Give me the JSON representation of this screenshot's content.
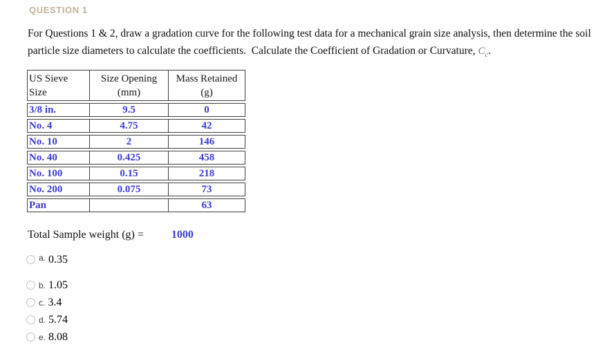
{
  "question_header": {
    "title": "QUESTION 1"
  },
  "paragraph": {
    "line1": "For Questions 1 & 2, draw a gradation curve for the following test data for a mechanical grain size analysis, then determine the soil",
    "line2": "particle size diameters to calculate the coefficients.  Calculate the Coefficient of Gradation or Curvature, ",
    "coefficient_symbol": "C",
    "coefficient_subscript": "c",
    "line2_end": "."
  },
  "sieve_table": {
    "headers": [
      {
        "line1": "US Sieve",
        "line2": "Size"
      },
      {
        "line1": "Size Opening",
        "line2": "(mm)"
      },
      {
        "line1": "Mass Retained",
        "line2": "(g)"
      }
    ],
    "rows": [
      {
        "sieve": "3/8 in.",
        "opening": "9.5",
        "mass": "0"
      },
      {
        "sieve": "No. 4",
        "opening": "4.75",
        "mass": "42"
      },
      {
        "sieve": "No. 10",
        "opening": "2",
        "mass": "146"
      },
      {
        "sieve": "No. 40",
        "opening": "0.425",
        "mass": "458"
      },
      {
        "sieve": "No. 100",
        "opening": "0.15",
        "mass": "218"
      },
      {
        "sieve": "No. 200",
        "opening": "0.075",
        "mass": "73"
      },
      {
        "sieve": "Pan",
        "opening": "",
        "mass": "63"
      }
    ]
  },
  "total": {
    "label": "Total Sample weight (g) =",
    "value": "1000"
  },
  "options": [
    {
      "letter": "a.",
      "value": "0.35"
    },
    {
      "letter": "b.",
      "value": "1.05"
    },
    {
      "letter": "c.",
      "value": "3.4"
    },
    {
      "letter": "d.",
      "value": "5.74"
    },
    {
      "letter": "e.",
      "value": "8.08"
    }
  ],
  "colors": {
    "data_blue": "#3a3ad4",
    "question_header_tan": "#c2b49a",
    "math_symbol_gray": "#70747a",
    "table_border": "#3f3f3f"
  }
}
